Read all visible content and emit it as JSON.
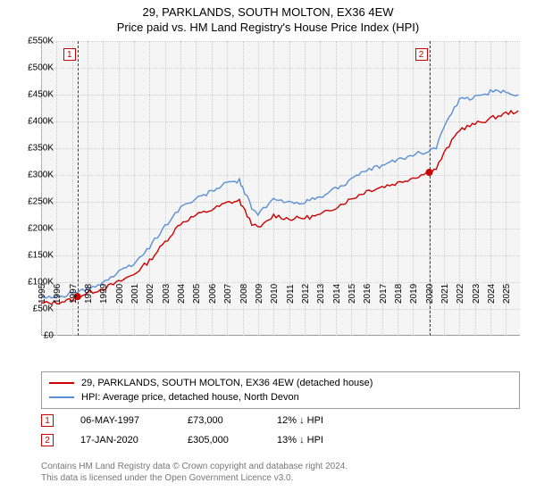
{
  "title_line1": "29, PARKLANDS, SOUTH MOLTON, EX36 4EW",
  "title_line2": "Price paid vs. HM Land Registry's House Price Index (HPI)",
  "chart": {
    "type": "line",
    "background_color": "#f5f5f5",
    "grid_color": "#cccccc",
    "axis_color": "#999999",
    "x_years": [
      1995,
      1996,
      1997,
      1998,
      1999,
      2000,
      2001,
      2002,
      2003,
      2004,
      2005,
      2006,
      2007,
      2008,
      2009,
      2010,
      2011,
      2012,
      2013,
      2014,
      2015,
      2016,
      2017,
      2018,
      2019,
      2020,
      2021,
      2022,
      2023,
      2024,
      2025
    ],
    "xlim": [
      1995,
      2025.9
    ],
    "ylim": [
      0,
      550
    ],
    "ytick_step": 50,
    "ytick_labels": [
      "£0",
      "£50K",
      "£100K",
      "£150K",
      "£200K",
      "£250K",
      "£300K",
      "£350K",
      "£400K",
      "£450K",
      "£500K",
      "£550K"
    ],
    "y_unit": "K",
    "label_fontsize": 10,
    "series": [
      {
        "name": "property",
        "color": "#cc0000",
        "line_width": 1.4,
        "data": [
          [
            1995,
            60
          ],
          [
            1996,
            62
          ],
          [
            1997,
            67
          ],
          [
            1997.35,
            73
          ],
          [
            1998,
            80
          ],
          [
            1999,
            88
          ],
          [
            2000,
            100
          ],
          [
            2001,
            115
          ],
          [
            2002,
            140
          ],
          [
            2003,
            175
          ],
          [
            2004,
            210
          ],
          [
            2005,
            225
          ],
          [
            2006,
            235
          ],
          [
            2007,
            248
          ],
          [
            2007.8,
            252
          ],
          [
            2008,
            240
          ],
          [
            2008.6,
            210
          ],
          [
            2009,
            200
          ],
          [
            2009.7,
            215
          ],
          [
            2010,
            225
          ],
          [
            2011,
            218
          ],
          [
            2012,
            220
          ],
          [
            2013,
            225
          ],
          [
            2014,
            240
          ],
          [
            2015,
            255
          ],
          [
            2016,
            270
          ],
          [
            2017,
            278
          ],
          [
            2018,
            285
          ],
          [
            2019,
            295
          ],
          [
            2020.05,
            305
          ],
          [
            2020.5,
            312
          ],
          [
            2021,
            340
          ],
          [
            2022,
            385
          ],
          [
            2023,
            395
          ],
          [
            2024,
            405
          ],
          [
            2025,
            415
          ],
          [
            2025.8,
            420
          ]
        ]
      },
      {
        "name": "hpi",
        "color": "#5a8fd6",
        "line_width": 1.4,
        "data": [
          [
            1995,
            70
          ],
          [
            1996,
            73
          ],
          [
            1997,
            78
          ],
          [
            1998,
            88
          ],
          [
            1999,
            100
          ],
          [
            2000,
            118
          ],
          [
            2001,
            135
          ],
          [
            2002,
            165
          ],
          [
            2003,
            205
          ],
          [
            2004,
            240
          ],
          [
            2005,
            255
          ],
          [
            2006,
            270
          ],
          [
            2007,
            285
          ],
          [
            2007.8,
            290
          ],
          [
            2008,
            275
          ],
          [
            2008.6,
            240
          ],
          [
            2009,
            228
          ],
          [
            2009.7,
            245
          ],
          [
            2010,
            255
          ],
          [
            2011,
            248
          ],
          [
            2012,
            250
          ],
          [
            2013,
            258
          ],
          [
            2014,
            275
          ],
          [
            2015,
            290
          ],
          [
            2016,
            308
          ],
          [
            2017,
            318
          ],
          [
            2018,
            328
          ],
          [
            2019,
            338
          ],
          [
            2020,
            345
          ],
          [
            2020.5,
            352
          ],
          [
            2021,
            390
          ],
          [
            2022,
            440
          ],
          [
            2023,
            445
          ],
          [
            2024,
            455
          ],
          [
            2025,
            455
          ],
          [
            2025.8,
            450
          ]
        ]
      }
    ],
    "markers": [
      {
        "label": "1",
        "year": 1997.35,
        "value": 73,
        "color": "#cc0000"
      },
      {
        "label": "2",
        "year": 2020.05,
        "value": 305,
        "color": "#cc0000"
      }
    ]
  },
  "legend": {
    "items": [
      {
        "color": "#cc0000",
        "label": "29, PARKLANDS, SOUTH MOLTON, EX36 4EW (detached house)"
      },
      {
        "color": "#5a8fd6",
        "label": "HPI: Average price, detached house, North Devon"
      }
    ]
  },
  "sales": [
    {
      "badge": "1",
      "badge_color": "#cc0000",
      "date": "06-MAY-1997",
      "price": "£73,000",
      "delta": "12% ↓ HPI"
    },
    {
      "badge": "2",
      "badge_color": "#cc0000",
      "date": "17-JAN-2020",
      "price": "£305,000",
      "delta": "13% ↓ HPI"
    }
  ],
  "footer_line1": "Contains HM Land Registry data © Crown copyright and database right 2024.",
  "footer_line2": "This data is licensed under the Open Government Licence v3.0."
}
